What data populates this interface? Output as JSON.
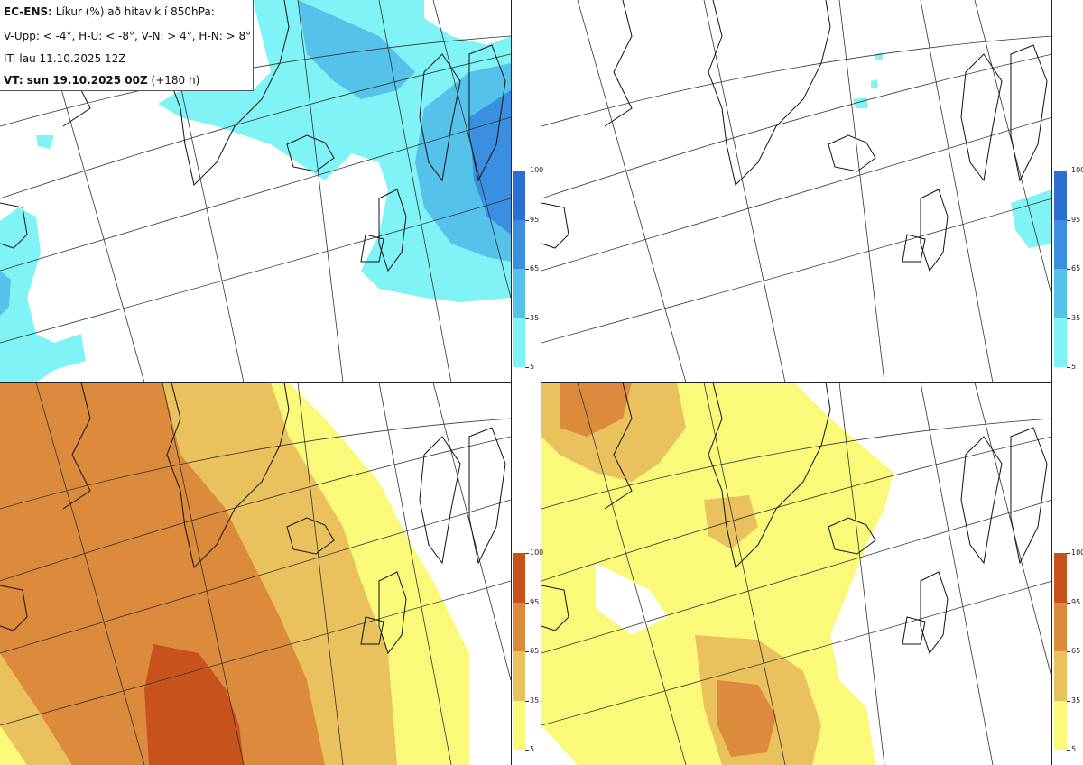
{
  "header": {
    "line1_bold": "EC-ENS:",
    "line1_rest": " Líkur (%) að hitavik í 850hPa:",
    "line2": "V-Upp: < -4°, H-U: < -8°, V-N: > 4°, H-N: > 8°",
    "line3": "IT: lau 11.10.2025 12Z",
    "line4_bold": "VT: sun 19.10.2025 00Z",
    "line4_rest": " (+180 h)"
  },
  "panels": [
    {
      "id": "V-Upp",
      "scheme": "cold"
    },
    {
      "id": "H-U",
      "scheme": "cold"
    },
    {
      "id": "V-N",
      "scheme": "warm"
    },
    {
      "id": "H-N",
      "scheme": "warm"
    }
  ],
  "colorbars": {
    "cold": {
      "labels": [
        "100",
        "95",
        "65",
        "35",
        "5"
      ],
      "colors": [
        "#2a6fd1",
        "#3b8fe0",
        "#55c2ea",
        "#7ff3f6"
      ]
    },
    "warm": {
      "labels": [
        "100",
        "95",
        "65",
        "35",
        "5"
      ],
      "colors": [
        "#c8521c",
        "#dc8a3c",
        "#e9c25e",
        "#fbf97a"
      ]
    }
  }
}
